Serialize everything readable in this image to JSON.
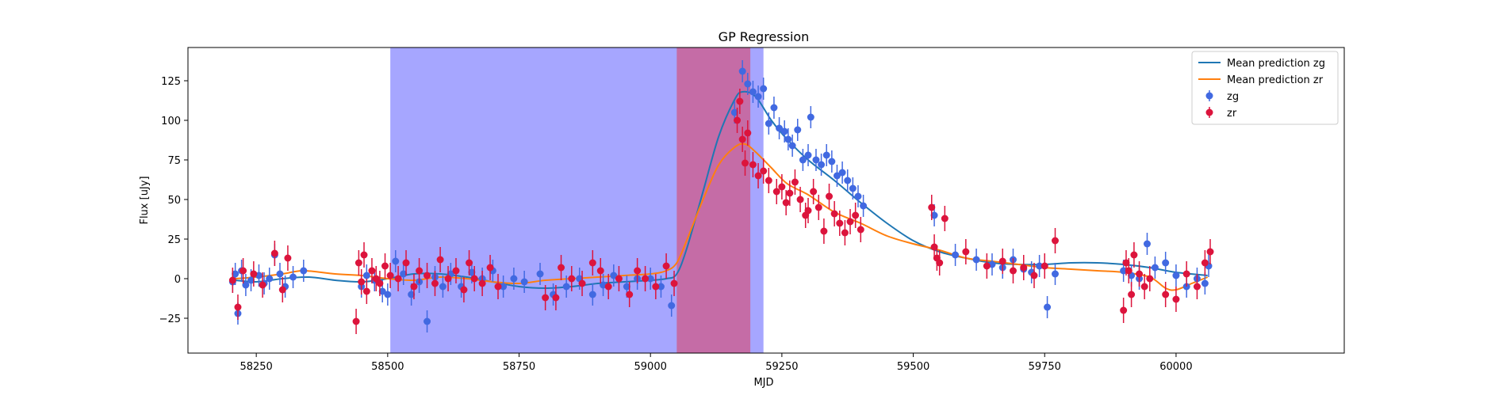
{
  "chart_data": {
    "type": "scatter",
    "title": "GP Regression",
    "xlabel": "MJD",
    "ylabel": "Flux [uJy]",
    "xlim": [
      58120,
      60320
    ],
    "ylim": [
      -47,
      146
    ],
    "xticks": [
      58250,
      58500,
      58750,
      59000,
      59250,
      59500,
      59750,
      60000
    ],
    "yticks": [
      -25,
      0,
      25,
      50,
      75,
      100,
      125
    ],
    "grid": false,
    "legend_position": "top-right",
    "shaded_regions": [
      {
        "x0": 58505,
        "x1": 59215,
        "color": "#0000ff",
        "alpha": 0.35
      },
      {
        "x0": 59050,
        "x1": 59190,
        "color": "#ff0000",
        "alpha": 0.35
      }
    ],
    "series": [
      {
        "name": "Mean prediction zg",
        "kind": "line",
        "color": "#1f77b4",
        "x": [
          58210,
          58250,
          58300,
          58350,
          58400,
          58450,
          58500,
          58550,
          58600,
          58650,
          58700,
          58750,
          58800,
          58850,
          58900,
          58950,
          59000,
          59030,
          59050,
          59070,
          59100,
          59130,
          59160,
          59175,
          59200,
          59230,
          59260,
          59300,
          59350,
          59400,
          59450,
          59500,
          59550,
          59600,
          59650,
          59700,
          59750,
          59800,
          59850,
          59900,
          59950,
          60000,
          60060
        ],
        "y": [
          -1,
          -2,
          0,
          1,
          -1,
          -2,
          0,
          3,
          3,
          1,
          -2,
          -5,
          -6,
          -5,
          -3,
          -2,
          -1,
          0,
          3,
          20,
          55,
          90,
          113,
          118,
          115,
          100,
          88,
          75,
          62,
          48,
          35,
          24,
          17,
          13,
          10,
          9,
          9,
          10,
          10,
          9,
          7,
          4,
          2
        ]
      },
      {
        "name": "Mean prediction zr",
        "kind": "line",
        "color": "#ff7f0e",
        "x": [
          58210,
          58250,
          58300,
          58340,
          58400,
          58450,
          58500,
          58550,
          58600,
          58650,
          58700,
          58750,
          58800,
          58850,
          58900,
          58950,
          59000,
          59030,
          59050,
          59070,
          59100,
          59130,
          59160,
          59180,
          59200,
          59230,
          59260,
          59300,
          59350,
          59400,
          59450,
          59500,
          59550,
          59600,
          59650,
          59700,
          59750,
          59800,
          59850,
          59900,
          59950,
          59980,
          60000,
          60030,
          60060
        ],
        "y": [
          0,
          1,
          3,
          5,
          3,
          2,
          0,
          -1,
          1,
          0,
          -2,
          -3,
          -1,
          0,
          1,
          2,
          3,
          5,
          10,
          25,
          50,
          72,
          83,
          85,
          80,
          70,
          60,
          53,
          42,
          35,
          27,
          22,
          18,
          13,
          11,
          9,
          7,
          6,
          5,
          4,
          1,
          -6,
          -7,
          -3,
          1
        ]
      },
      {
        "name": "zg",
        "kind": "errorbar",
        "color": "#4169e1",
        "x": [
          58205,
          58210,
          58215,
          58222,
          58230,
          58240,
          58255,
          58265,
          58275,
          58285,
          58295,
          58305,
          58320,
          58340,
          58450,
          58460,
          58475,
          58490,
          58500,
          58515,
          58530,
          58545,
          58560,
          58575,
          58590,
          58605,
          58620,
          58640,
          58660,
          58680,
          58700,
          58720,
          58740,
          58760,
          58790,
          58815,
          58840,
          58865,
          58890,
          58910,
          58930,
          58955,
          58975,
          59000,
          59020,
          59040,
          59160,
          59175,
          59185,
          59195,
          59205,
          59215,
          59225,
          59235,
          59245,
          59255,
          59262,
          59270,
          59280,
          59290,
          59300,
          59305,
          59315,
          59325,
          59335,
          59345,
          59355,
          59365,
          59375,
          59385,
          59395,
          59405,
          59540,
          59580,
          59620,
          59650,
          59670,
          59690,
          59710,
          59725,
          59740,
          59755,
          59770,
          59900,
          59915,
          59930,
          59945,
          59960,
          59980,
          60000,
          60020,
          60040,
          60055,
          60062
        ],
        "y": [
          -2,
          3,
          -22,
          5,
          -4,
          -1,
          2,
          -3,
          0,
          15,
          3,
          -5,
          1,
          5,
          -5,
          2,
          -1,
          -8,
          -10,
          11,
          3,
          -10,
          -2,
          -27,
          1,
          -5,
          3,
          -5,
          4,
          0,
          5,
          -5,
          0,
          -2,
          3,
          -10,
          -5,
          0,
          -10,
          -4,
          2,
          -5,
          0,
          0,
          -5,
          -17,
          105,
          131,
          123,
          118,
          115,
          120,
          98,
          108,
          95,
          93,
          88,
          84,
          94,
          75,
          78,
          102,
          75,
          72,
          78,
          74,
          65,
          67,
          62,
          57,
          52,
          46,
          40,
          15,
          12,
          9,
          7,
          12,
          6,
          4,
          8,
          -18,
          3,
          5,
          2,
          0,
          22,
          7,
          10,
          2,
          -5,
          0,
          -3,
          8
        ]
      },
      {
        "name": "zr",
        "kind": "errorbar",
        "color": "#dc143c",
        "x": [
          58205,
          58215,
          58225,
          58245,
          58262,
          58285,
          58300,
          58310,
          58440,
          58445,
          58450,
          58455,
          58460,
          58470,
          58478,
          58485,
          58495,
          58505,
          58520,
          58535,
          58550,
          58560,
          58575,
          58590,
          58600,
          58615,
          58630,
          58645,
          58655,
          58665,
          58680,
          58695,
          58710,
          58800,
          58820,
          58830,
          58850,
          58870,
          58890,
          58905,
          58920,
          58940,
          58960,
          58975,
          58990,
          59010,
          59030,
          59045,
          59165,
          59170,
          59175,
          59180,
          59185,
          59195,
          59205,
          59215,
          59225,
          59240,
          59250,
          59258,
          59265,
          59275,
          59285,
          59295,
          59300,
          59310,
          59320,
          59330,
          59340,
          59350,
          59360,
          59370,
          59380,
          59390,
          59400,
          59535,
          59540,
          59545,
          59550,
          59560,
          59600,
          59640,
          59670,
          59690,
          59710,
          59730,
          59750,
          59770,
          59900,
          59905,
          59910,
          59915,
          59920,
          59930,
          59940,
          59950,
          59980,
          60000,
          60020,
          60040,
          60055,
          60065
        ],
        "y": [
          -1,
          -18,
          5,
          3,
          -4,
          16,
          -7,
          13,
          -27,
          10,
          -2,
          15,
          -8,
          5,
          0,
          -3,
          8,
          2,
          0,
          10,
          -5,
          5,
          2,
          -3,
          12,
          0,
          5,
          -7,
          10,
          0,
          -3,
          7,
          -5,
          -12,
          -12,
          7,
          0,
          -3,
          10,
          5,
          -5,
          0,
          -10,
          5,
          0,
          -5,
          8,
          -3,
          100,
          112,
          88,
          73,
          92,
          72,
          65,
          68,
          62,
          55,
          58,
          48,
          54,
          61,
          50,
          40,
          43,
          55,
          45,
          30,
          52,
          41,
          35,
          29,
          36,
          40,
          31,
          45,
          20,
          13,
          10,
          38,
          17,
          8,
          11,
          5,
          7,
          2,
          8,
          24,
          -20,
          10,
          5,
          -10,
          15,
          3,
          -5,
          0,
          -10,
          -13,
          3,
          -5,
          10,
          17
        ],
        "yerr": 8
      }
    ]
  }
}
